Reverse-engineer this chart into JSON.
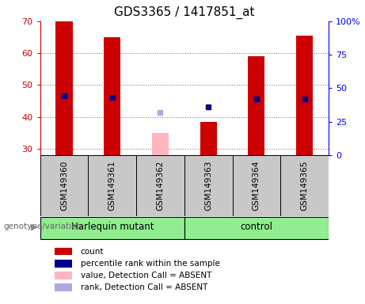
{
  "title": "GDS3365 / 1417851_at",
  "samples": [
    "GSM149360",
    "GSM149361",
    "GSM149362",
    "GSM149363",
    "GSM149364",
    "GSM149365"
  ],
  "count_values": [
    70,
    65,
    null,
    38.5,
    59,
    65.5
  ],
  "count_absent": [
    null,
    null,
    35,
    null,
    null,
    null
  ],
  "rank_values": [
    46.5,
    46,
    null,
    43,
    45.5,
    45.5
  ],
  "rank_absent": [
    null,
    null,
    41.5,
    null,
    null,
    null
  ],
  "ylim": [
    28,
    70
  ],
  "yticks": [
    30,
    40,
    50,
    60,
    70
  ],
  "y2lim": [
    0,
    100
  ],
  "y2ticks": [
    0,
    25,
    50,
    75,
    100
  ],
  "y2tick_labels": [
    "0",
    "25",
    "50",
    "75",
    "100%"
  ],
  "bar_width": 0.35,
  "count_color": "#CC0000",
  "count_absent_color": "#FFB6C1",
  "rank_color": "#00008B",
  "rank_absent_color": "#AAAADD",
  "group_boundaries": [
    [
      0,
      2,
      "Harlequin mutant"
    ],
    [
      3,
      5,
      "control"
    ]
  ],
  "group_color": "#90EE90",
  "sample_bg": "#C8C8C8",
  "legend_items": [
    {
      "label": "count",
      "color": "#CC0000"
    },
    {
      "label": "percentile rank within the sample",
      "color": "#00008B"
    },
    {
      "label": "value, Detection Call = ABSENT",
      "color": "#FFB6C1"
    },
    {
      "label": "rank, Detection Call = ABSENT",
      "color": "#AAAADD"
    }
  ]
}
